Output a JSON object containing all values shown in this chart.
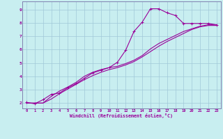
{
  "bg_color": "#c8eef0",
  "line_color": "#990099",
  "grid_color": "#a0c8d8",
  "spine_color": "#8080b0",
  "xlabel": "Windchill (Refroidissement éolien,°C)",
  "xlim": [
    -0.5,
    23.5
  ],
  "ylim": [
    1.6,
    9.6
  ],
  "xticks": [
    0,
    1,
    2,
    3,
    4,
    5,
    6,
    7,
    8,
    9,
    10,
    11,
    12,
    13,
    14,
    15,
    16,
    17,
    18,
    19,
    20,
    21,
    22,
    23
  ],
  "yticks": [
    2,
    3,
    4,
    5,
    6,
    7,
    8,
    9
  ],
  "series1_x": [
    0,
    1,
    2,
    3,
    4,
    5,
    6,
    7,
    8,
    9,
    10,
    11,
    12,
    13,
    14,
    15,
    16,
    17,
    18,
    19,
    20,
    21,
    22,
    23
  ],
  "series1_y": [
    2.05,
    1.95,
    2.25,
    2.65,
    2.75,
    3.15,
    3.45,
    3.85,
    4.25,
    4.45,
    4.65,
    5.05,
    5.95,
    7.35,
    8.05,
    9.05,
    9.05,
    8.75,
    8.55,
    7.95,
    7.95,
    7.95,
    7.95,
    7.85
  ],
  "series2_x": [
    0,
    2,
    3,
    4,
    5,
    6,
    7,
    8,
    9,
    10,
    11,
    12,
    13,
    14,
    15,
    16,
    17,
    18,
    19,
    20,
    21,
    22,
    23
  ],
  "series2_y": [
    2.0,
    2.0,
    2.5,
    2.9,
    3.2,
    3.55,
    4.0,
    4.3,
    4.5,
    4.65,
    4.75,
    4.95,
    5.2,
    5.55,
    6.05,
    6.45,
    6.75,
    7.05,
    7.35,
    7.55,
    7.75,
    7.85,
    7.85
  ],
  "series3_x": [
    0,
    2,
    3,
    4,
    5,
    6,
    7,
    8,
    9,
    10,
    11,
    12,
    13,
    14,
    15,
    16,
    17,
    18,
    19,
    20,
    21,
    22,
    23
  ],
  "series3_y": [
    2.0,
    2.0,
    2.3,
    2.7,
    3.05,
    3.4,
    3.75,
    4.05,
    4.3,
    4.5,
    4.65,
    4.85,
    5.1,
    5.45,
    5.85,
    6.25,
    6.6,
    6.9,
    7.2,
    7.5,
    7.7,
    7.8,
    7.8
  ]
}
